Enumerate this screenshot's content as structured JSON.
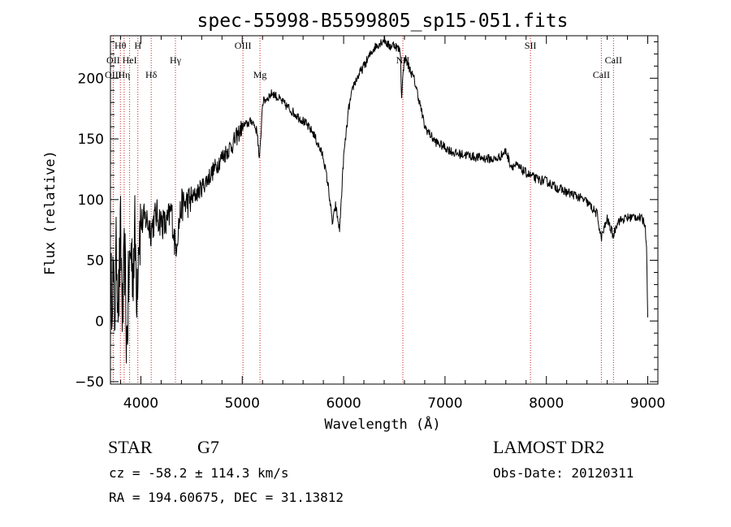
{
  "chart_data": {
    "type": "line",
    "title": "spec-55998-B5599805_sp15-051.fits",
    "xlabel": "Wavelength (Å)",
    "ylabel": "Flux (relative)",
    "xlim": [
      3700,
      9100
    ],
    "ylim": [
      -52,
      235
    ],
    "xticks": [
      4000,
      5000,
      6000,
      7000,
      8000,
      9000
    ],
    "yticks": [
      -50,
      0,
      50,
      100,
      150,
      200
    ],
    "grid": false,
    "line_color": "#000000",
    "line_markers": [
      {
        "label": "Hθ",
        "wavelength": 3798,
        "row": 0
      },
      {
        "label": "H",
        "wavelength": 3970,
        "row": 0
      },
      {
        "label": "OII",
        "wavelength": 3727,
        "row": 1
      },
      {
        "label": "HeI",
        "wavelength": 3889,
        "row": 1
      },
      {
        "label": "OIII",
        "wavelength": 3727,
        "row": 2
      },
      {
        "label": "Hη",
        "wavelength": 3835,
        "row": 2
      },
      {
        "label": "Hδ",
        "wavelength": 4102,
        "row": 2
      },
      {
        "label": "Hγ",
        "wavelength": 4341,
        "row": 1
      },
      {
        "label": "OIII",
        "wavelength": 5007,
        "row": 0
      },
      {
        "label": "Mg",
        "wavelength": 5175,
        "row": 2
      },
      {
        "label": "NII",
        "wavelength": 6584,
        "row": 1
      },
      {
        "label": "SII",
        "wavelength": 7843,
        "row": 0
      },
      {
        "label": "CaII",
        "wavelength": 8662,
        "row": 1
      },
      {
        "label": "CaII",
        "wavelength": 8542,
        "row": 2
      }
    ],
    "marker_color": "#cc2222",
    "spectrum": [
      [
        3700,
        10
      ],
      [
        3720,
        40
      ],
      [
        3740,
        5
      ],
      [
        3760,
        60
      ],
      [
        3780,
        15
      ],
      [
        3800,
        70
      ],
      [
        3820,
        0
      ],
      [
        3840,
        55
      ],
      [
        3860,
        -20
      ],
      [
        3880,
        30
      ],
      [
        3900,
        60
      ],
      [
        3920,
        45
      ],
      [
        3940,
        70
      ],
      [
        3960,
        30
      ],
      [
        3980,
        75
      ],
      [
        4000,
        80
      ],
      [
        4050,
        85
      ],
      [
        4100,
        75
      ],
      [
        4150,
        88
      ],
      [
        4200,
        82
      ],
      [
        4250,
        78
      ],
      [
        4300,
        92
      ],
      [
        4340,
        60
      ],
      [
        4400,
        95
      ],
      [
        4500,
        100
      ],
      [
        4600,
        110
      ],
      [
        4700,
        122
      ],
      [
        4800,
        135
      ],
      [
        4900,
        145
      ],
      [
        5000,
        160
      ],
      [
        5100,
        165
      ],
      [
        5150,
        155
      ],
      [
        5170,
        130
      ],
      [
        5200,
        180
      ],
      [
        5300,
        188
      ],
      [
        5400,
        180
      ],
      [
        5500,
        172
      ],
      [
        5600,
        165
      ],
      [
        5700,
        155
      ],
      [
        5800,
        135
      ],
      [
        5850,
        110
      ],
      [
        5890,
        80
      ],
      [
        5920,
        95
      ],
      [
        5960,
        75
      ],
      [
        6000,
        135
      ],
      [
        6050,
        175
      ],
      [
        6100,
        195
      ],
      [
        6200,
        210
      ],
      [
        6300,
        225
      ],
      [
        6400,
        232
      ],
      [
        6450,
        226
      ],
      [
        6500,
        228
      ],
      [
        6560,
        222
      ],
      [
        6570,
        185
      ],
      [
        6600,
        218
      ],
      [
        6700,
        198
      ],
      [
        6750,
        180
      ],
      [
        6800,
        160
      ],
      [
        6900,
        148
      ],
      [
        7000,
        143
      ],
      [
        7100,
        138
      ],
      [
        7200,
        137
      ],
      [
        7300,
        135
      ],
      [
        7400,
        134
      ],
      [
        7500,
        133
      ],
      [
        7550,
        136
      ],
      [
        7600,
        140
      ],
      [
        7650,
        128
      ],
      [
        7700,
        128
      ],
      [
        7800,
        122
      ],
      [
        7900,
        117
      ],
      [
        8000,
        115
      ],
      [
        8100,
        110
      ],
      [
        8200,
        106
      ],
      [
        8300,
        103
      ],
      [
        8400,
        98
      ],
      [
        8500,
        88
      ],
      [
        8540,
        68
      ],
      [
        8600,
        84
      ],
      [
        8660,
        70
      ],
      [
        8700,
        82
      ],
      [
        8800,
        85
      ],
      [
        8900,
        86
      ],
      [
        8970,
        82
      ],
      [
        8990,
        60
      ],
      [
        9000,
        0
      ]
    ]
  },
  "info": {
    "object_class": "STAR",
    "subclass": "G7",
    "survey": "LAMOST DR2",
    "velocity": "cz = -58.2 ± 114.3 km/s",
    "obs_date": "Obs-Date: 20120311",
    "coords": "RA = 194.60675, DEC =  31.13812"
  }
}
